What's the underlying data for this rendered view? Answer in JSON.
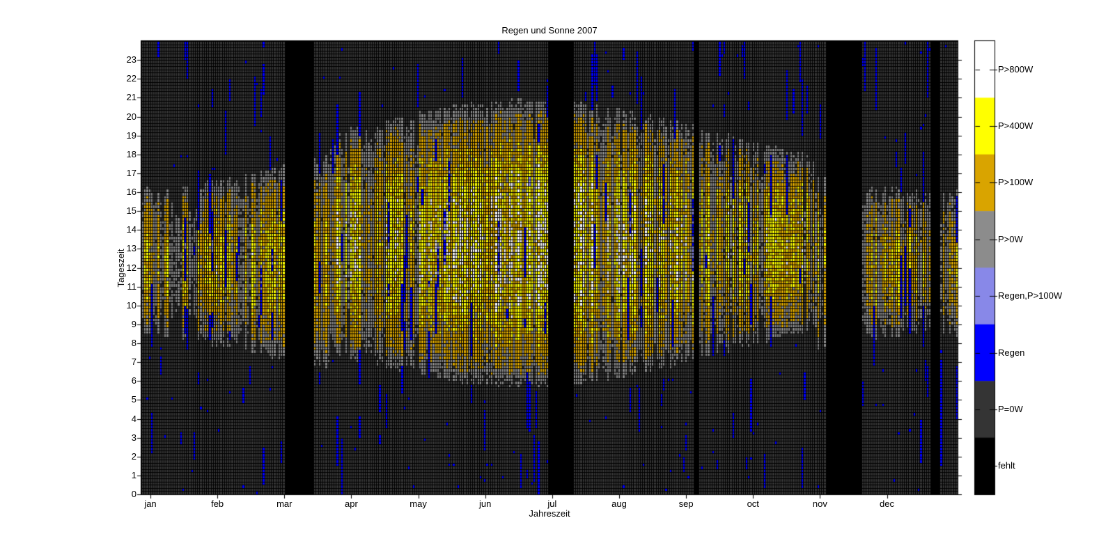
{
  "figure": {
    "background": "#ffffff"
  },
  "chart": {
    "title": "Regen und Sonne 2007",
    "xlabel": "Jahreszeit",
    "ylabel": "Tageszeit",
    "x_tick_labels": [
      "jan",
      "feb",
      "mar",
      "apr",
      "may",
      "jun",
      "jul",
      "aug",
      "sep",
      "oct",
      "nov",
      "dec"
    ],
    "y_tick_labels": [
      "0",
      "1",
      "2",
      "3",
      "4",
      "5",
      "6",
      "7",
      "8",
      "9",
      "10",
      "11",
      "12",
      "13",
      "14",
      "15",
      "16",
      "17",
      "18",
      "19",
      "20",
      "21",
      "22",
      "23"
    ]
  },
  "chart_data": {
    "type": "heatmap",
    "title": "Regen und Sonne 2007",
    "xlabel": "Jahreszeit",
    "ylabel": "Tageszeit",
    "x_axis": {
      "unit": "day of year 2007",
      "range_days": [
        1,
        365
      ],
      "tick_labels": [
        "jan",
        "feb",
        "mar",
        "apr",
        "may",
        "jun",
        "jul",
        "aug",
        "sep",
        "oct",
        "nov",
        "dec"
      ]
    },
    "y_axis": {
      "unit": "hour of day",
      "range": [
        0,
        24
      ],
      "tick_labels": [
        0,
        1,
        2,
        3,
        4,
        5,
        6,
        7,
        8,
        9,
        10,
        11,
        12,
        13,
        14,
        15,
        16,
        17,
        18,
        19,
        20,
        21,
        22,
        23
      ]
    },
    "value_scale": {
      "type": "categorical",
      "classes_top_to_bottom": [
        {
          "key": "p_gt_800",
          "label": "P>800W",
          "color": "#ffffff"
        },
        {
          "key": "p_gt_400",
          "label": "P>400W",
          "color": "#ffff00"
        },
        {
          "key": "p_gt_100",
          "label": "P>100W",
          "color": "#d9a400"
        },
        {
          "key": "p_gt_0",
          "label": "P>0W",
          "color": "#8c8c8c"
        },
        {
          "key": "rain_p_gt_100",
          "label": "Regen,P>100W",
          "color": "#8888e8"
        },
        {
          "key": "rain",
          "label": "Regen",
          "color": "#0000ff"
        },
        {
          "key": "p_eq_0",
          "label": "P=0W",
          "color": "#343434"
        },
        {
          "key": "missing",
          "label": "fehlt",
          "color": "#000000"
        }
      ],
      "legend_position": "right colorbar"
    },
    "grid": "black 1px mosaic grid between cells",
    "missing_data_periods": [
      {
        "day_index_range": [
          64,
          76
        ],
        "approx_dates": "Mar 6 - Mar 18"
      },
      {
        "day_index_range": [
          182,
          192
        ],
        "approx_dates": "Jul 2 - Jul 12"
      },
      {
        "day_index_range": [
          247,
          248
        ],
        "approx_dates": "Sep 5 - Sep 6"
      },
      {
        "day_index_range": [
          306,
          321
        ],
        "approx_dates": "Nov 3 - Nov 18"
      },
      {
        "day_index_range": [
          353,
          356
        ],
        "approx_dates": "Dec 20 - Dec 23"
      }
    ],
    "pattern_summary": "Each day of 2007 is a thin column, each 10-minute interval a row. Night hours are P=0W (dark gray) with scattered blue rain marks; the daylight band follows seasonal sunrise/sunset including a +1h DST shift late Mar to late Oct. Twilight edges are P>0W (gray), mornings/evenings P>100W (gold), clear middays P>400W (yellow) and P>800W (white) mainly Apr-Sep. Rain appears as blue vertical streaks, light violet where power still exceeds 100W; overcast days form dark/gray columns; solid black vertical bands mark missing data (fehlt).",
    "render_generator": {
      "seed": 20077,
      "days": 365,
      "rows": 144,
      "solar_noon": 12.3,
      "dst_start_day": 84,
      "dst_end_day": 301,
      "daylen_min_h": 8.3,
      "daylen_amp_h": 7.6,
      "pmax_base_w": 600,
      "pmax_amp_w": 550,
      "elevation_exponent": 1.5,
      "overcast_prob_winter": 0.34,
      "overcast_prob_summer": 0.11,
      "dull_prob": 0.25,
      "rain_day_prob": 0.4,
      "night_rain_speck_prob": 0.006,
      "rain_power_factor": 0.15,
      "thresholds_w": {
        "white": 800,
        "yellow": 400,
        "orange": 100,
        "gray": 18
      }
    }
  }
}
